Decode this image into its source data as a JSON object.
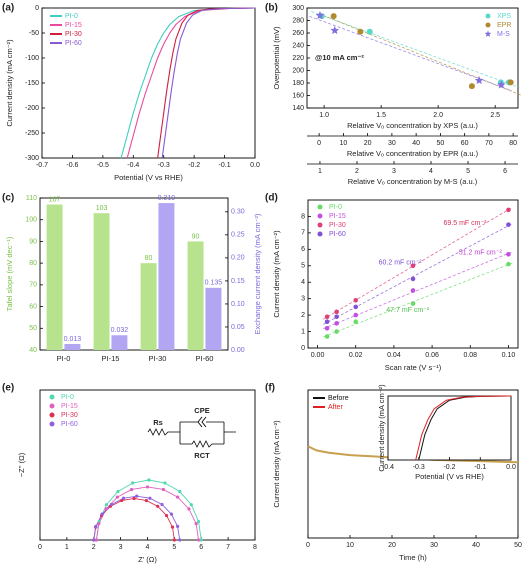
{
  "chart_data": [
    {
      "type": "line",
      "label": "(a)",
      "xlabel": "Potential (V vs RHE)",
      "ylabel": "Current density (mA cm⁻²)",
      "xlim": [
        -0.7,
        0
      ],
      "xticks": [
        -0.7,
        -0.6,
        -0.5,
        -0.4,
        -0.3,
        -0.2,
        -0.1,
        {
          "value": 0,
          "label": "0.0"
        }
      ],
      "ylim": [
        -300,
        0
      ],
      "yticks": [
        -300,
        -250,
        -200,
        -150,
        -100,
        -50,
        0
      ],
      "legend": "top-left",
      "series": [
        {
          "name": "PI-0",
          "color": "#3ecfc0",
          "x": [
            -0.44,
            -0.42,
            -0.4,
            -0.38,
            -0.36,
            -0.34,
            -0.32,
            -0.3,
            -0.28,
            -0.25,
            -0.2,
            -0.1,
            0
          ],
          "values": [
            -300,
            -255,
            -210,
            -170,
            -135,
            -100,
            -72,
            -50,
            -33,
            -17,
            -5,
            -1,
            0
          ]
        },
        {
          "name": "PI-15",
          "color": "#e84aa0",
          "x": [
            -0.42,
            -0.4,
            -0.38,
            -0.36,
            -0.34,
            -0.32,
            -0.3,
            -0.28,
            -0.26,
            -0.23,
            -0.18,
            -0.08,
            0
          ],
          "values": [
            -300,
            -255,
            -210,
            -170,
            -135,
            -100,
            -72,
            -50,
            -33,
            -17,
            -5,
            -1,
            0
          ]
        },
        {
          "name": "PI-30",
          "color": "#d02040",
          "x": [
            -0.32,
            -0.31,
            -0.3,
            -0.29,
            -0.28,
            -0.27,
            -0.26,
            -0.24,
            -0.22,
            -0.19,
            -0.15,
            -0.1,
            0
          ],
          "values": [
            -300,
            -255,
            -210,
            -165,
            -125,
            -90,
            -62,
            -30,
            -14,
            -5,
            -2,
            -1,
            0
          ]
        },
        {
          "name": "PI-60",
          "color": "#8a5ad0",
          "x": [
            -0.305,
            -0.295,
            -0.285,
            -0.275,
            -0.265,
            -0.255,
            -0.245,
            -0.225,
            -0.205,
            -0.175,
            -0.135,
            -0.085,
            0
          ],
          "values": [
            -300,
            -255,
            -210,
            -165,
            -125,
            -90,
            -62,
            -30,
            -14,
            -5,
            -2,
            -1,
            0
          ]
        }
      ]
    },
    {
      "type": "scatter",
      "label": "(b)",
      "ylabel": "Overpotential (mV)",
      "annotation": "@10 mA cm⁻²",
      "ylim": [
        140,
        300
      ],
      "yticks": [
        140,
        160,
        180,
        200,
        220,
        240,
        260,
        280,
        300
      ],
      "legend": "top-right",
      "xaxes": [
        {
          "label": "Relative Vₒ concentration by XPS (a.u.)",
          "lim": [
            0.85,
            2.7
          ],
          "ticks": [
            {
              "value": 1,
              "label": "1.0"
            },
            1.5,
            {
              "value": 2,
              "label": "2.0"
            },
            2.5
          ]
        },
        {
          "label": "Relative Vₒ concentration by EPR (a.u.)",
          "lim": [
            -5,
            82
          ],
          "ticks": [
            0,
            10,
            20,
            30,
            40,
            50,
            60,
            70,
            80
          ]
        },
        {
          "label": "Relative Vₒ concentration by M-S (a.u.)",
          "lim": [
            0.65,
            6.35
          ],
          "ticks": [
            1,
            2,
            3,
            4,
            5,
            6
          ]
        }
      ],
      "series": [
        {
          "name": "XPS",
          "color": "#5ad8c8",
          "marker": "circle",
          "axis": 0,
          "x": [
            0.98,
            1.4,
            2.55,
            2.62
          ],
          "values": [
            287,
            262,
            181,
            181
          ]
        },
        {
          "name": "EPR",
          "color": "#b08a30",
          "marker": "circle",
          "axis": 1,
          "x": [
            6,
            17,
            63,
            79
          ],
          "values": [
            287,
            262,
            175,
            181
          ]
        },
        {
          "name": "M-S",
          "color": "#8070e0",
          "marker": "star",
          "axis": 2,
          "x": [
            1.0,
            1.4,
            5.3,
            5.9
          ],
          "values": [
            288,
            264,
            184,
            177
          ]
        }
      ]
    },
    {
      "type": "bar",
      "label": "(c)",
      "ylabel": "Tafel slope (mV dec⁻¹)",
      "y2label": "Exchange current density (mA cm⁻²)",
      "categories": [
        "PI-0",
        "PI-15",
        "PI-30",
        "PI-60"
      ],
      "ylim": [
        40,
        110
      ],
      "yticks": [
        40,
        50,
        60,
        70,
        80,
        90,
        100,
        110
      ],
      "y2lim": [
        0,
        0.33
      ],
      "y2ticks": [
        {
          "value": 0,
          "label": "0.00"
        },
        0.05,
        {
          "value": 0.1,
          "label": "0.10"
        },
        0.15,
        {
          "value": 0.2,
          "label": "0.20"
        },
        0.25,
        {
          "value": 0.3,
          "label": "0.30"
        }
      ],
      "series": [
        {
          "color": "#b8e38e",
          "label_color": "#7cc04a",
          "values": [
            107,
            103,
            80,
            90
          ]
        },
        {
          "color": "#b2a6f2",
          "label_color": "#7b6ad8",
          "axis": "y2",
          "values": [
            0.013,
            0.032,
            0.319,
            0.135
          ]
        }
      ]
    },
    {
      "type": "scatter",
      "label": "(d)",
      "xlabel": "Scan rate (V s⁻¹)",
      "ylabel": "Current density (mA cm⁻²)",
      "xlim": [
        -0.005,
        0.105
      ],
      "xticks": [
        {
          "value": 0,
          "label": "0.00"
        },
        0.02,
        0.04,
        0.06,
        0.08,
        {
          "value": 0.1,
          "label": "0.10"
        }
      ],
      "ylim": [
        0,
        9
      ],
      "yticks": [
        0,
        1,
        2,
        3,
        4,
        5,
        6,
        7,
        8
      ],
      "legend": "top-left",
      "series": [
        {
          "name": "PI-0",
          "color": "#66dd66",
          "marker": "circle",
          "x": [
            0.005,
            0.01,
            0.02,
            0.05,
            0.1
          ],
          "values": [
            0.7,
            1.0,
            1.6,
            2.7,
            5.1
          ]
        },
        {
          "name": "PI-15",
          "color": "#c050e0",
          "marker": "circle",
          "x": [
            0.005,
            0.01,
            0.02,
            0.05,
            0.1
          ],
          "values": [
            1.2,
            1.5,
            2.0,
            3.5,
            5.7
          ]
        },
        {
          "name": "PI-30",
          "color": "#e0407a",
          "marker": "circle",
          "x": [
            0.005,
            0.01,
            0.02,
            0.05,
            0.1
          ],
          "values": [
            1.9,
            2.2,
            2.9,
            5.0,
            8.4
          ]
        },
        {
          "name": "PI-60",
          "color": "#8050d8",
          "marker": "circle",
          "x": [
            0.005,
            0.01,
            0.02,
            0.05,
            0.1
          ],
          "values": [
            1.6,
            1.9,
            2.5,
            4.2,
            7.5
          ]
        }
      ],
      "annotations": [
        {
          "text": "69.5 mF cm⁻²",
          "color": "#d0305a"
        },
        {
          "text": "60.2 mF cm⁻²",
          "color": "#8050d0"
        },
        {
          "text": "51.2 mF cm⁻²",
          "color": "#c040d0"
        },
        {
          "text": "47.7 mF cm⁻²",
          "color": "#50c050"
        }
      ]
    },
    {
      "type": "nyquist",
      "label": "(e)",
      "xlabel": "Z' (Ω)",
      "ylabel": "−Z'' (Ω)",
      "xlim": [
        0,
        8
      ],
      "xticks": [
        0,
        1,
        2,
        3,
        4,
        5,
        6,
        7,
        8
      ],
      "ylim": [
        0,
        6.5
      ],
      "legend": "top-left",
      "circuit": [
        "Rs",
        "CPE",
        "RCT"
      ],
      "series": [
        {
          "name": "PI-0",
          "color": "#50d8b0",
          "x": [
            2.1,
            2.2,
            2.47,
            2.9,
            3.45,
            4.05,
            4.65,
            5.2,
            5.63,
            5.9,
            6.0
          ],
          "values": [
            0,
            0.8,
            1.53,
            2.1,
            2.47,
            2.6,
            2.47,
            2.1,
            1.53,
            0.8,
            0
          ]
        },
        {
          "name": "PI-15",
          "color": "#e060c0",
          "x": [
            2.1,
            2.19,
            2.46,
            2.88,
            3.41,
            4.0,
            4.59,
            5.12,
            5.54,
            5.81,
            5.9
          ],
          "values": [
            0,
            0.71,
            1.35,
            1.86,
            2.19,
            2.3,
            2.19,
            1.86,
            1.35,
            0.71,
            0
          ]
        },
        {
          "name": "PI-30",
          "color": "#e03050",
          "x": [
            2.0,
            2.07,
            2.29,
            2.62,
            3.04,
            3.5,
            3.96,
            4.38,
            4.71,
            4.93,
            5.0
          ],
          "values": [
            0,
            0.56,
            1.06,
            1.46,
            1.71,
            1.8,
            1.71,
            1.46,
            1.06,
            0.56,
            0
          ]
        },
        {
          "name": "PI-60",
          "color": "#9060e0",
          "x": [
            2.0,
            2.08,
            2.31,
            2.66,
            3.11,
            3.6,
            4.09,
            4.54,
            4.89,
            5.12,
            5.2
          ],
          "values": [
            0,
            0.59,
            1.12,
            1.54,
            1.81,
            1.9,
            1.81,
            1.54,
            1.12,
            0.59,
            0
          ]
        }
      ]
    },
    {
      "type": "line",
      "label": "(f)",
      "xlabel": "Time (h)",
      "ylabel": "Current density (mA cm⁻²)",
      "xlim": [
        0,
        50
      ],
      "xticks": [
        0,
        10,
        20,
        30,
        40,
        50
      ],
      "ylim": [
        -25,
        0
      ],
      "series": [
        {
          "color": "#c8a050",
          "x": [
            0,
            2,
            5,
            10,
            15,
            20,
            25,
            30,
            35,
            40,
            45,
            50
          ],
          "values": [
            -9.5,
            -10.2,
            -10.6,
            -11,
            -11.2,
            -11.4,
            -11.6,
            -11.8,
            -11.9,
            -12,
            -12.1,
            -12.2
          ]
        }
      ]
    },
    {
      "type": "line",
      "xlabel": "Potential (V vs RHE)",
      "ylabel": "Current density (mA cm⁻²)",
      "xlim": [
        -0.4,
        0
      ],
      "xticks": [
        -0.4,
        -0.3,
        -0.2,
        -0.1,
        {
          "value": 0,
          "label": "0.0"
        }
      ],
      "ylim": [
        -300,
        0
      ],
      "legend": "outside-left",
      "series": [
        {
          "name": "Before",
          "color": "#111111",
          "x": [
            -0.3,
            -0.29,
            -0.28,
            -0.26,
            -0.24,
            -0.2,
            -0.15,
            -0.1,
            0
          ],
          "values": [
            -300,
            -240,
            -180,
            -110,
            -60,
            -20,
            -6,
            -2,
            0
          ]
        },
        {
          "name": "After",
          "color": "#e02020",
          "x": [
            -0.31,
            -0.3,
            -0.29,
            -0.27,
            -0.25,
            -0.21,
            -0.16,
            -0.11,
            0
          ],
          "values": [
            -300,
            -240,
            -180,
            -110,
            -60,
            -20,
            -6,
            -2,
            0
          ]
        }
      ]
    }
  ]
}
